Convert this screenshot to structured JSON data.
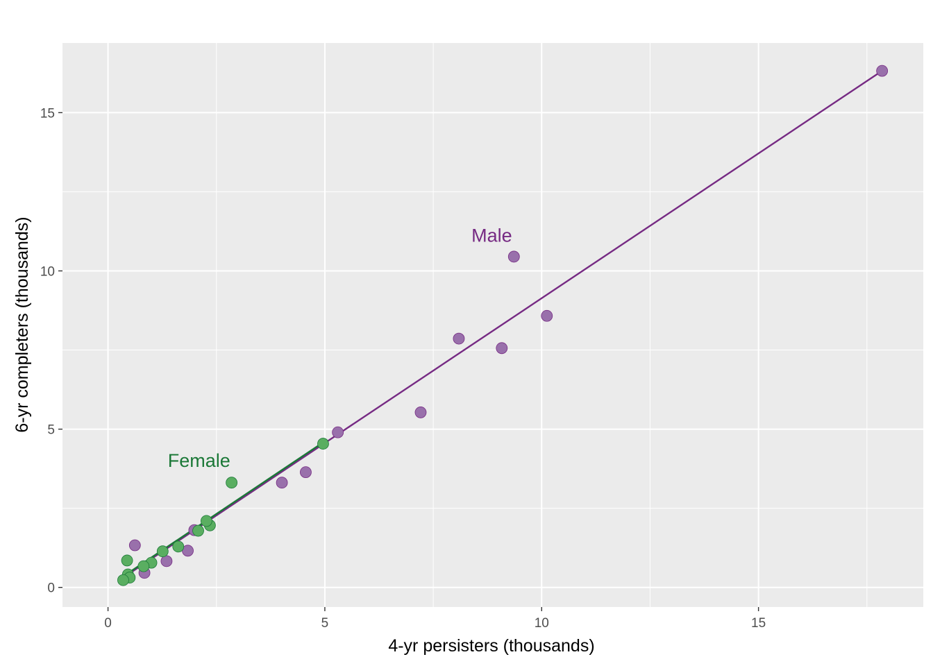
{
  "chart_data": {
    "type": "scatter",
    "xlabel": "4-yr persisters (thousands)",
    "ylabel": "6-yr completers (thousands)",
    "xlim": [
      -1.05,
      18.8
    ],
    "ylim": [
      -0.62,
      17.2
    ],
    "x_ticks": [
      0,
      5,
      10,
      15
    ],
    "x_tick_labels": [
      "0",
      "5",
      "10",
      "15"
    ],
    "y_ticks": [
      0,
      5,
      10,
      15
    ],
    "y_tick_labels": [
      "0",
      "5",
      "10",
      "15"
    ],
    "grid": true,
    "background": "#EBEBEB",
    "series": [
      {
        "name": "Male",
        "color": "#762A83",
        "fill": "#9970AB",
        "points": [
          [
            17.85,
            16.32
          ],
          [
            10.12,
            8.58
          ],
          [
            9.36,
            10.45
          ],
          [
            9.08,
            7.56
          ],
          [
            8.09,
            7.86
          ],
          [
            7.21,
            5.53
          ],
          [
            5.3,
            4.9
          ],
          [
            4.56,
            3.64
          ],
          [
            4.01,
            3.31
          ],
          [
            1.99,
            1.81
          ],
          [
            1.84,
            1.16
          ],
          [
            1.35,
            0.83
          ],
          [
            0.84,
            0.46
          ],
          [
            0.62,
            1.33
          ]
        ],
        "fit_line": [
          [
            0.32,
            0.28
          ],
          [
            17.85,
            16.32
          ]
        ]
      },
      {
        "name": "Female",
        "color": "#1B7837",
        "fill": "#5AAE61",
        "points": [
          [
            4.96,
            4.54
          ],
          [
            2.85,
            3.31
          ],
          [
            2.35,
            1.96
          ],
          [
            2.27,
            2.1
          ],
          [
            2.08,
            1.79
          ],
          [
            1.62,
            1.29
          ],
          [
            1.26,
            1.14
          ],
          [
            1.0,
            0.78
          ],
          [
            0.82,
            0.67
          ],
          [
            0.44,
            0.85
          ],
          [
            0.46,
            0.41
          ],
          [
            0.5,
            0.31
          ],
          [
            0.35,
            0.23
          ]
        ],
        "fit_line": [
          [
            0.32,
            0.32
          ],
          [
            4.96,
            4.58
          ]
        ]
      }
    ],
    "annotations": [
      {
        "text": "Male",
        "x": 8.85,
        "y": 11.12,
        "color": "#762A83"
      },
      {
        "text": "Female",
        "x": 2.1,
        "y": 4.0,
        "color": "#1B7837"
      }
    ]
  }
}
